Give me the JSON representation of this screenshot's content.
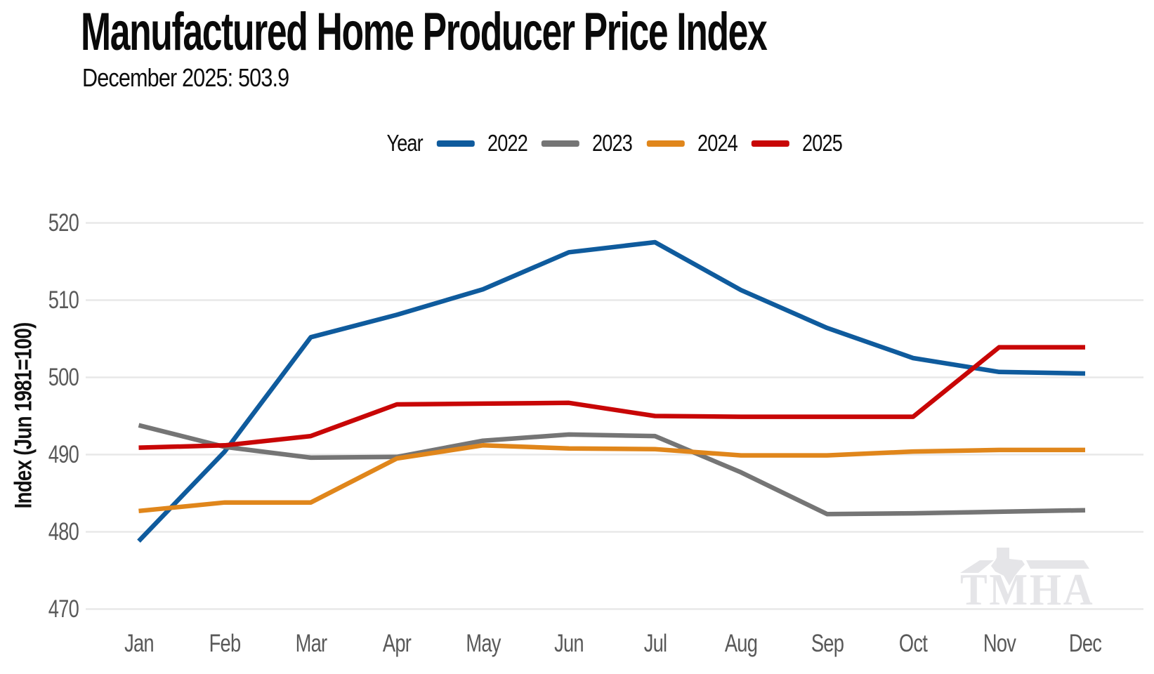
{
  "header": {
    "title": "Manufactured Home Producer Price Index",
    "subtitle": "December 2025: 503.9"
  },
  "legend": {
    "title": "Year"
  },
  "watermark": {
    "text": "TMHA"
  },
  "chart_data": {
    "type": "line",
    "title": "Manufactured Home Producer Price Index",
    "subtitle": "December 2025: 503.9",
    "x": [
      "Jan",
      "Feb",
      "Mar",
      "Apr",
      "May",
      "Jun",
      "Jul",
      "Aug",
      "Sep",
      "Oct",
      "Nov",
      "Dec"
    ],
    "xlabel": "",
    "ylabel": "Index (Jun 1981=100)",
    "ylim": [
      470,
      520
    ],
    "yticks": [
      470,
      480,
      490,
      500,
      510,
      520
    ],
    "grid": "horizontal",
    "legend_position": "top",
    "series": [
      {
        "name": "2022",
        "color": "#0f5b9d",
        "values": [
          478.8,
          490.4,
          505.2,
          508.1,
          511.4,
          516.2,
          517.5,
          511.3,
          506.4,
          502.5,
          500.7,
          500.5
        ]
      },
      {
        "name": "2023",
        "color": "#757575",
        "values": [
          493.8,
          491.0,
          489.6,
          489.7,
          491.8,
          492.6,
          492.4,
          487.7,
          482.3,
          482.4,
          482.6,
          482.8
        ]
      },
      {
        "name": "2024",
        "color": "#e0861b",
        "values": [
          482.7,
          483.8,
          483.8,
          489.5,
          491.2,
          490.8,
          490.7,
          489.9,
          489.9,
          490.4,
          490.6,
          490.6
        ]
      },
      {
        "name": "2025",
        "color": "#c80606",
        "values": [
          490.9,
          491.2,
          492.4,
          496.5,
          496.6,
          496.7,
          495.0,
          494.9,
          494.9,
          494.9,
          503.9,
          503.9
        ]
      }
    ]
  }
}
